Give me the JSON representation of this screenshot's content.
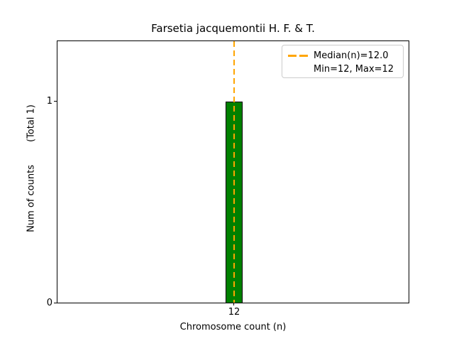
{
  "figure": {
    "title": "Farsetia jacquemontii H. F. & T.",
    "x_axis": {
      "label": "Chromosome count (n)",
      "ticks": [
        "12"
      ]
    },
    "y_axis": {
      "label": "Num of counts",
      "total_annotation": "(Total 1)",
      "ticks": [
        "0",
        "1"
      ]
    },
    "legend": {
      "median_label": "Median(n)=12.0",
      "minmax_label": "Min=12, Max=12"
    },
    "colors": {
      "bar_fill": "#008000",
      "bar_edge": "#000000",
      "median_line": "#FFA500",
      "background": "#FFFFFF"
    }
  },
  "chart_data": {
    "type": "bar",
    "title": "Farsetia jacquemontii H. F. & T.",
    "xlabel": "Chromosome count (n)",
    "ylabel": "Num of counts (Total 1)",
    "categories": [
      "12"
    ],
    "values": [
      1
    ],
    "x_tick_labels": [
      "12"
    ],
    "y_tick_labels": [
      "0",
      "1"
    ],
    "ylim": [
      0,
      1.3
    ],
    "grid": false,
    "bar_color": "#008000",
    "bar_edge_color": "#000000",
    "total_counts": 1,
    "median_line": {
      "x": 12.0,
      "color": "#FFA500",
      "style": "dashed",
      "orientation": "vertical"
    },
    "annotations": {
      "median_n": 12.0,
      "min": 12,
      "max": 12
    },
    "legend": {
      "position": "upper right",
      "entries": [
        {
          "label": "Median(n)=12.0",
          "handle": "orange-dashed-line"
        },
        {
          "label": "Min=12, Max=12",
          "handle": "none"
        }
      ]
    }
  }
}
